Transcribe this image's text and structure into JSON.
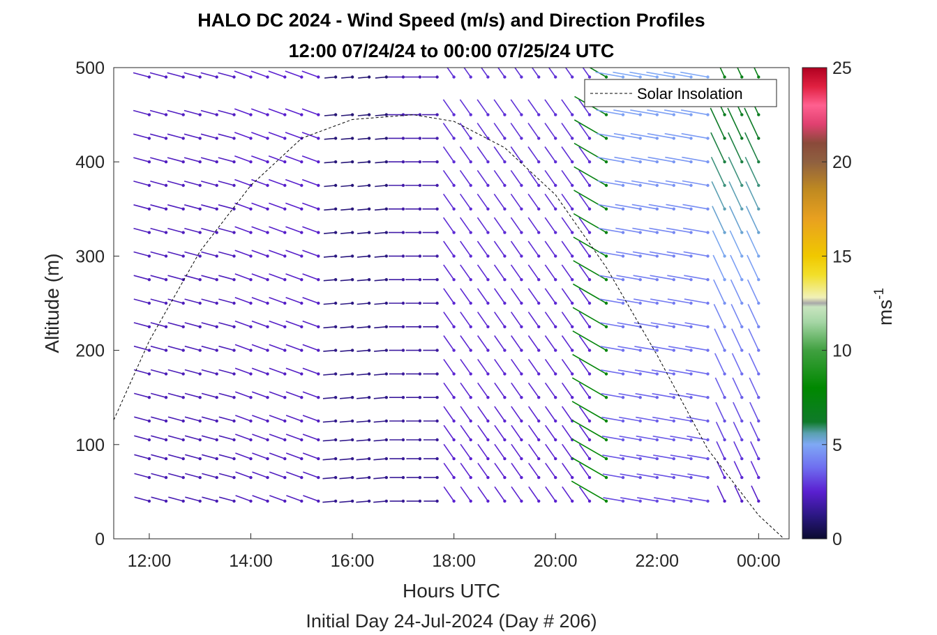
{
  "chart_data": {
    "type": "quiver",
    "title": "HALO DC 2024 - Wind Speed (m/s) and Direction Profiles",
    "subtitle": "12:00 07/24/24 to 00:00 07/25/24  UTC",
    "xlabel": "Hours UTC",
    "ylabel": "Altitude (m)",
    "footer": "Initial Day 24-Jul-2024 (Day # 206)",
    "xlim_hours": [
      11.3,
      24.6
    ],
    "ylim": [
      0,
      500
    ],
    "x_ticks": [
      {
        "value": 12,
        "label": "12:00"
      },
      {
        "value": 14,
        "label": "14:00"
      },
      {
        "value": 16,
        "label": "16:00"
      },
      {
        "value": 18,
        "label": "18:00"
      },
      {
        "value": 20,
        "label": "20:00"
      },
      {
        "value": 22,
        "label": "22:00"
      },
      {
        "value": 24,
        "label": "00:00"
      }
    ],
    "y_ticks": [
      0,
      100,
      200,
      300,
      400,
      500
    ],
    "colorbar": {
      "label": "ms",
      "label_exponent": "-1",
      "range": [
        0,
        25
      ],
      "ticks": [
        0,
        5,
        10,
        15,
        20,
        25
      ],
      "stops": [
        [
          0,
          "#0b0b30"
        ],
        [
          1.2,
          "#2a1780"
        ],
        [
          2.5,
          "#5a1fd0"
        ],
        [
          3.8,
          "#6f6ff0"
        ],
        [
          5,
          "#7fa8f5"
        ],
        [
          5.6,
          "#5aa0b0"
        ],
        [
          6.2,
          "#0f7a2a"
        ],
        [
          8,
          "#008800"
        ],
        [
          10,
          "#40a040"
        ],
        [
          11.5,
          "#a5d6a5"
        ],
        [
          12.3,
          "#c8e4bf"
        ],
        [
          12.5,
          "#a8a8a8"
        ],
        [
          12.8,
          "#f1f1b8"
        ],
        [
          14,
          "#f2df2a"
        ],
        [
          15,
          "#f0c800"
        ],
        [
          17,
          "#e8a020"
        ],
        [
          18.5,
          "#c08a20"
        ],
        [
          20,
          "#8f6040"
        ],
        [
          21,
          "#8a4a3a"
        ],
        [
          22,
          "#e04070"
        ],
        [
          23,
          "#ff6090"
        ],
        [
          24,
          "#e02040"
        ],
        [
          25,
          "#b00020"
        ]
      ]
    },
    "legend": {
      "position": "top-right",
      "entries": [
        {
          "label": "Solar Insolation",
          "style": "dashed-black"
        }
      ]
    },
    "insolation_curve": [
      {
        "hour": 11.3,
        "alt": 126
      },
      {
        "hour": 12.0,
        "alt": 210
      },
      {
        "hour": 13.0,
        "alt": 305
      },
      {
        "hour": 14.0,
        "alt": 375
      },
      {
        "hour": 15.0,
        "alt": 425
      },
      {
        "hour": 16.0,
        "alt": 445
      },
      {
        "hour": 17.2,
        "alt": 450
      },
      {
        "hour": 18.0,
        "alt": 443
      },
      {
        "hour": 19.0,
        "alt": 415
      },
      {
        "hour": 20.0,
        "alt": 365
      },
      {
        "hour": 21.0,
        "alt": 288
      },
      {
        "hour": 22.0,
        "alt": 195
      },
      {
        "hour": 23.0,
        "alt": 95
      },
      {
        "hour": 24.0,
        "alt": 25
      },
      {
        "hour": 24.5,
        "alt": 0
      }
    ],
    "vectors": {
      "hours": [
        12.0,
        12.33,
        12.67,
        13.0,
        13.33,
        13.67,
        14.0,
        14.33,
        14.67,
        15.0,
        15.33,
        15.67,
        16.0,
        16.33,
        16.67,
        17.0,
        17.33,
        17.67,
        18.0,
        18.33,
        18.67,
        19.0,
        19.33,
        19.67,
        20.0,
        20.33,
        20.67,
        21.0,
        21.33,
        21.67,
        22.0,
        22.33,
        22.67,
        23.0,
        23.33,
        23.67,
        24.0
      ],
      "altitudes": [
        40,
        65,
        85,
        105,
        125,
        150,
        175,
        200,
        225,
        250,
        275,
        300,
        325,
        350,
        375,
        400,
        425,
        450,
        490
      ],
      "periods": [
        {
          "from": 11.8,
          "to": 14.0,
          "speed": 2.0,
          "direction_deg": 255,
          "speed_aloft": 2.3
        },
        {
          "from": 14.0,
          "to": 15.5,
          "speed": 2.2,
          "direction_deg": 250,
          "speed_aloft": 2.5
        },
        {
          "from": 15.5,
          "to": 16.9,
          "speed": 1.5,
          "direction_deg": 275,
          "speed_aloft": 1.0
        },
        {
          "from": 16.9,
          "to": 17.9,
          "speed": 1.5,
          "direction_deg": 270,
          "speed_aloft": 2.0
        },
        {
          "from": 17.9,
          "to": 21.0,
          "speed": 2.5,
          "direction_deg": 215,
          "speed_aloft": 2.8
        },
        {
          "from": 21.0,
          "to": 21.2,
          "speed": 8.0,
          "direction_deg": 240,
          "speed_aloft": 7.0
        },
        {
          "from": 21.2,
          "to": 23.2,
          "speed": 3.0,
          "direction_deg": 260,
          "speed_aloft": 5.0
        },
        {
          "from": 23.2,
          "to": 24.2,
          "speed": 2.0,
          "direction_deg": 205,
          "speed_aloft": 7.0
        }
      ]
    }
  }
}
